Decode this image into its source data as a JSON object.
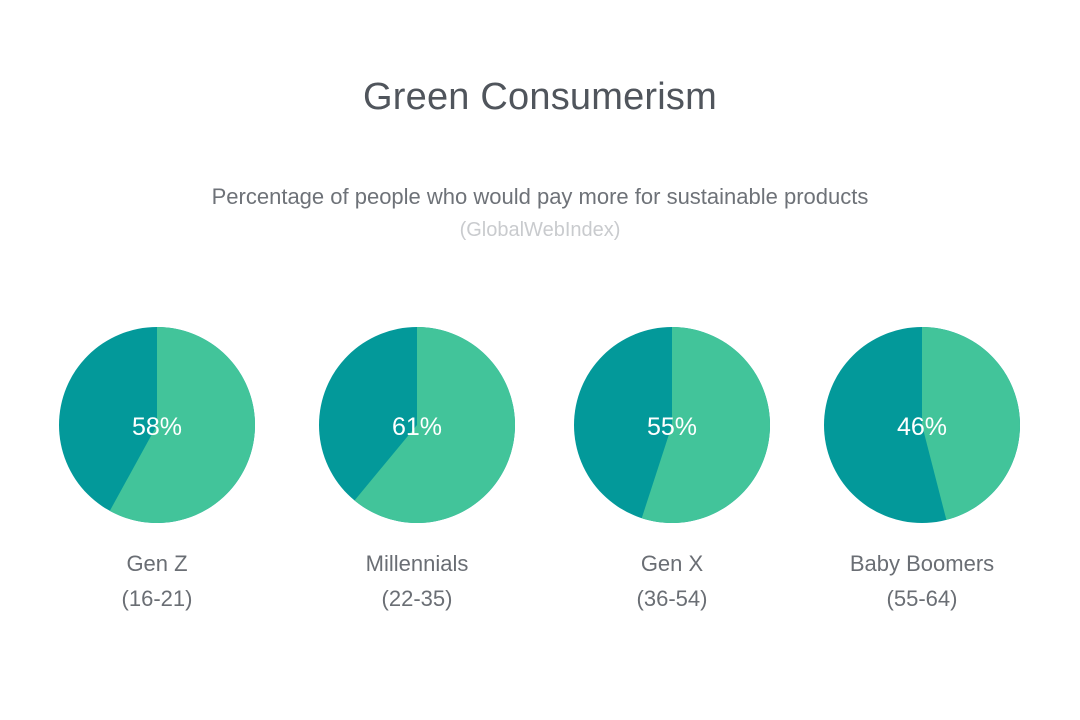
{
  "chart_data": {
    "type": "pie",
    "title": "Green Consumerism",
    "subtitle": "Percentage of people who would pay more for sustainable products",
    "source": "(GlobalWebIndex)",
    "colors": {
      "highlight": "#42c49a",
      "remainder": "#03999a"
    },
    "series": [
      {
        "name": "Gen Z",
        "range": "(16-21)",
        "value": 58,
        "value_label": "58%"
      },
      {
        "name": "Millennials",
        "range": "(22-35)",
        "value": 61,
        "value_label": "61%"
      },
      {
        "name": "Gen X",
        "range": "(36-54)",
        "value": 55,
        "value_label": "55%"
      },
      {
        "name": "Baby Boomers",
        "range": "(55-64)",
        "value": 46,
        "value_label": "46%"
      }
    ]
  }
}
